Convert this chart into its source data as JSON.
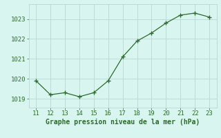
{
  "x": [
    11,
    12,
    13,
    14,
    15,
    16,
    17,
    18,
    19,
    20,
    21,
    22,
    23
  ],
  "y": [
    1019.9,
    1019.2,
    1019.3,
    1019.1,
    1019.3,
    1019.9,
    1021.1,
    1021.9,
    1022.3,
    1022.8,
    1023.2,
    1023.3,
    1023.1
  ],
  "xlabel": "Graphe pression niveau de la mer (hPa)",
  "line_color": "#2d6a2d",
  "marker_color": "#2d6a2d",
  "bg_color": "#d8f5f0",
  "grid_color": "#b8d8d4",
  "text_color": "#2d6a2d",
  "ylim_min": 1018.55,
  "ylim_max": 1023.75,
  "yticks": [
    1019,
    1020,
    1021,
    1022,
    1023
  ],
  "xticks": [
    11,
    12,
    13,
    14,
    15,
    16,
    17,
    18,
    19,
    20,
    21,
    22,
    23
  ],
  "xlabel_fontsize": 7.0,
  "tick_fontsize": 6.5
}
